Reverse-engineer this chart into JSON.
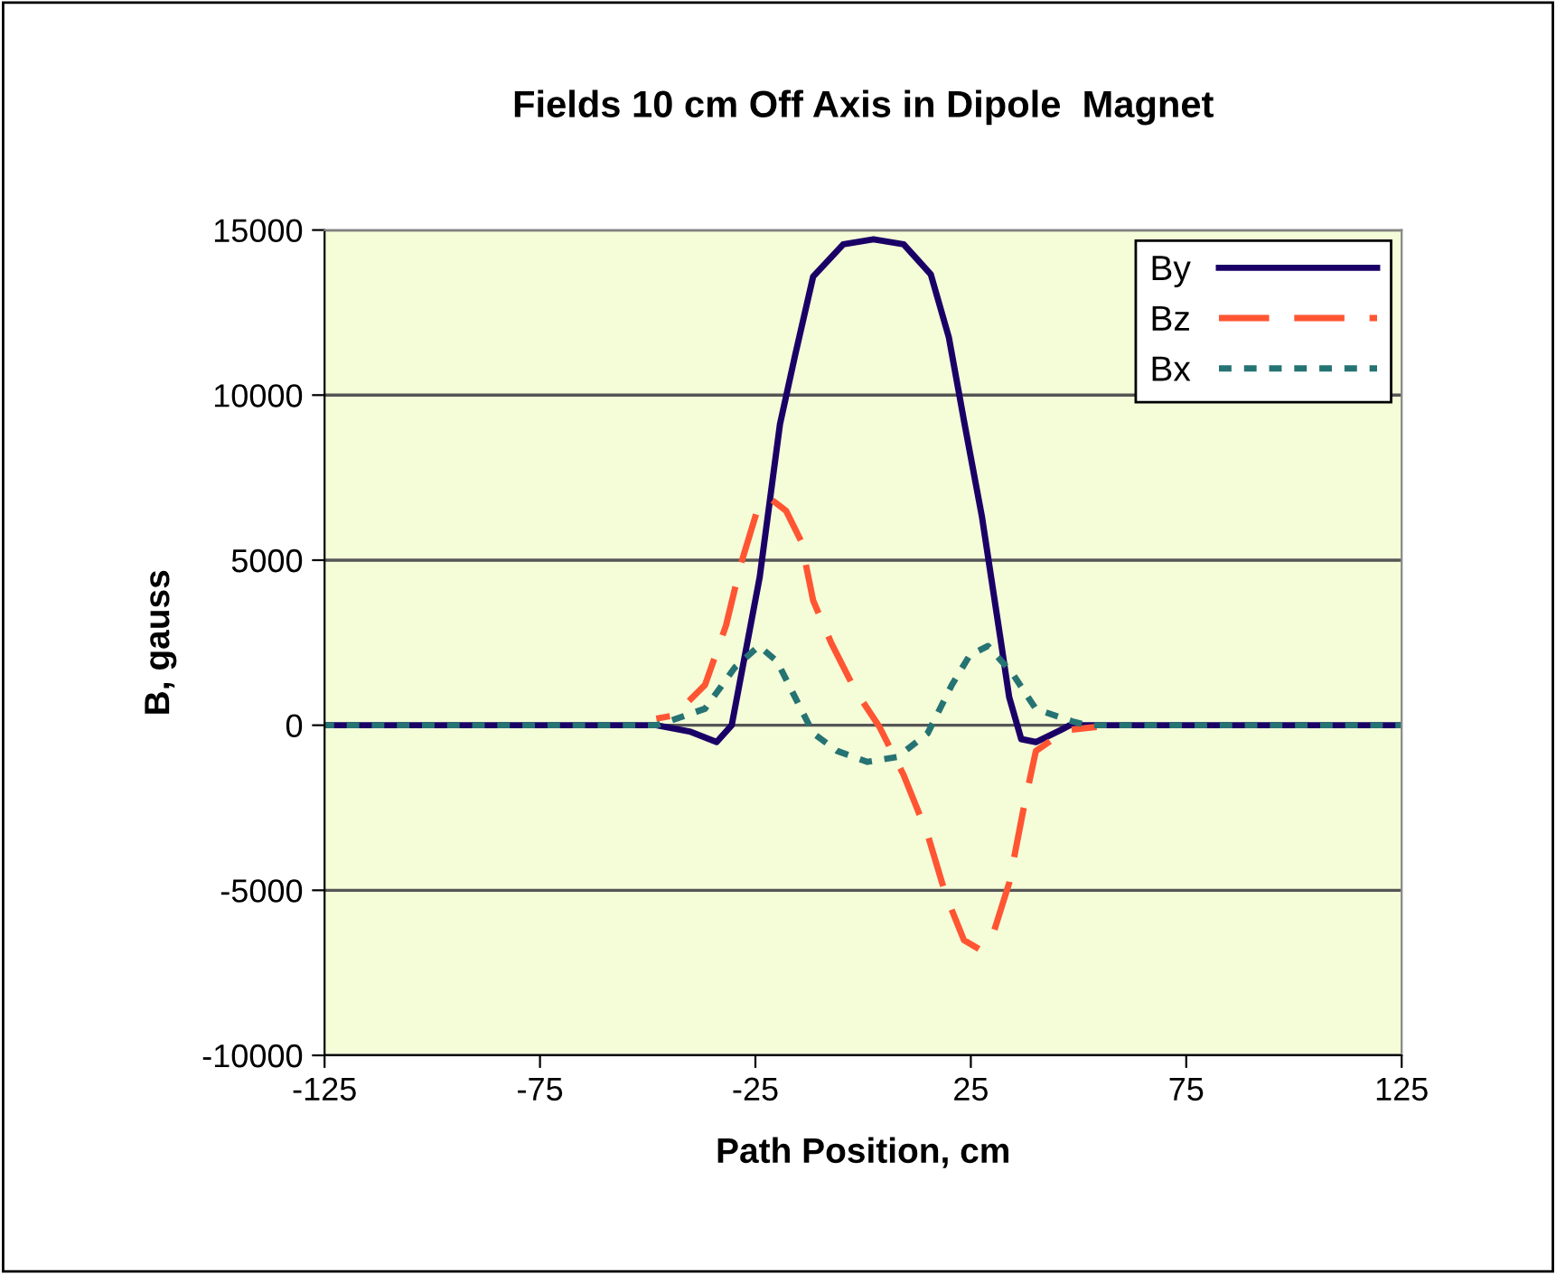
{
  "chart_data": {
    "type": "line",
    "title": "Fields 10 cm Off Axis in Dipole  Magnet",
    "xlabel": "Path Position, cm",
    "ylabel": "B, gauss",
    "xlim": [
      -125,
      125
    ],
    "xticks": [
      -125,
      -75,
      -25,
      25,
      75,
      125
    ],
    "ylim": [
      -10000,
      15000
    ],
    "yticks": [
      -10000,
      -5000,
      0,
      5000,
      10000,
      15000
    ],
    "grid": "y",
    "legend": "top right",
    "series": [
      {
        "name": "By",
        "color": "#1a0066",
        "line_style": "solid",
        "x": [
          -125,
          -48,
          -40,
          -34,
          -30.5,
          -24,
          -19.3,
          -15.8,
          -11.6,
          -4.6,
          2.4,
          9.4,
          15.7,
          19.9,
          23.4,
          27.6,
          31.8,
          33.9,
          36.7,
          40.1,
          45.8,
          48,
          125
        ],
        "values": [
          0,
          0,
          -200,
          -510,
          0,
          4490,
          9120,
          11200,
          13590,
          14570,
          14720,
          14570,
          13660,
          11750,
          9230,
          6300,
          2690,
          850,
          -420,
          -510,
          -150,
          0,
          0
        ]
      },
      {
        "name": "Bz",
        "color": "#ff5533",
        "line_style": "dashed",
        "x": [
          -48,
          -43.8,
          -36.7,
          -31.8,
          -28.4,
          -24.2,
          -21.4,
          -17.9,
          -14.4,
          -11.6,
          -7.4,
          -1.8,
          3.8,
          9.4,
          15,
          19.2,
          23.4,
          26.9,
          30.4,
          33.9,
          37.4,
          40.1,
          47.1,
          54.2
        ],
        "values": [
          200,
          300,
          1220,
          3030,
          4870,
          6670,
          6850,
          6500,
          5580,
          3780,
          2490,
          1050,
          -50,
          -1510,
          -3320,
          -5150,
          -6510,
          -6780,
          -6230,
          -4780,
          -2420,
          -780,
          -150,
          -50
        ]
      },
      {
        "name": "Bx",
        "color": "#267373",
        "line_style": "dotted",
        "x": [
          -125,
          -48,
          -45.1,
          -36.7,
          -29.7,
          -24.2,
          -20,
          -15.8,
          -11.6,
          -6,
          1,
          8,
          15,
          20.6,
          24.8,
          29,
          34.6,
          40.1,
          48.5,
          52,
          125
        ],
        "values": [
          0,
          0,
          120,
          500,
          1760,
          2400,
          1940,
          850,
          -240,
          -780,
          -1110,
          -960,
          -240,
          1220,
          2130,
          2400,
          1580,
          490,
          120,
          0,
          0
        ]
      }
    ]
  }
}
